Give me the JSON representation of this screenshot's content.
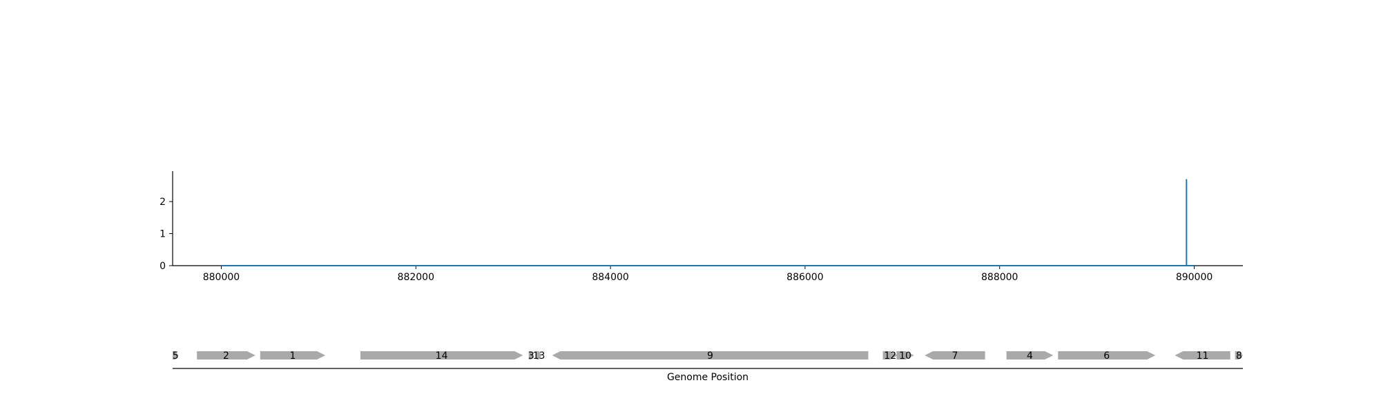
{
  "chart_data": [
    {
      "type": "line",
      "title": "",
      "xlabel": "",
      "ylabel": "",
      "xlim": [
        879500,
        890500
      ],
      "ylim": [
        0,
        2.95
      ],
      "x_ticks": [
        880000,
        882000,
        884000,
        886000,
        888000,
        890000
      ],
      "y_ticks": [
        0,
        1,
        2
      ],
      "grid": false,
      "color": "#1f77b4",
      "series": [
        {
          "x": [
            880000,
            889920,
            889920,
            889920,
            889920,
            890000
          ],
          "values": [
            0,
            0,
            2.7,
            2.7,
            0,
            0
          ]
        }
      ]
    },
    {
      "type": "gene-track",
      "xlabel": "Genome Position",
      "xlim": [
        879500,
        890500
      ],
      "color": "#a9a9a9",
      "genes": [
        {
          "label": "5",
          "start": 879500,
          "end": 879560,
          "strand": 1
        },
        {
          "label": "2",
          "start": 879750,
          "end": 880350,
          "strand": 1
        },
        {
          "label": "1",
          "start": 880400,
          "end": 881070,
          "strand": 1
        },
        {
          "label": "14",
          "start": 881430,
          "end": 883100,
          "strand": 1
        },
        {
          "label": "3",
          "start": 883160,
          "end": 883210,
          "strand": 1
        },
        {
          "label": "13",
          "start": 883240,
          "end": 883290,
          "strand": 1
        },
        {
          "label": "9",
          "start": 883400,
          "end": 886650,
          "strand": -1
        },
        {
          "label": "12",
          "start": 886800,
          "end": 886950,
          "strand": 1
        },
        {
          "label": "10",
          "start": 886940,
          "end": 887120,
          "strand": 1
        },
        {
          "label": "7",
          "start": 887230,
          "end": 887850,
          "strand": -1
        },
        {
          "label": "4",
          "start": 888070,
          "end": 888550,
          "strand": 1
        },
        {
          "label": "6",
          "start": 888600,
          "end": 889600,
          "strand": 1
        },
        {
          "label": "11",
          "start": 889800,
          "end": 890370,
          "strand": -1
        },
        {
          "label": "8",
          "start": 890420,
          "end": 890500,
          "strand": 1
        }
      ]
    }
  ]
}
